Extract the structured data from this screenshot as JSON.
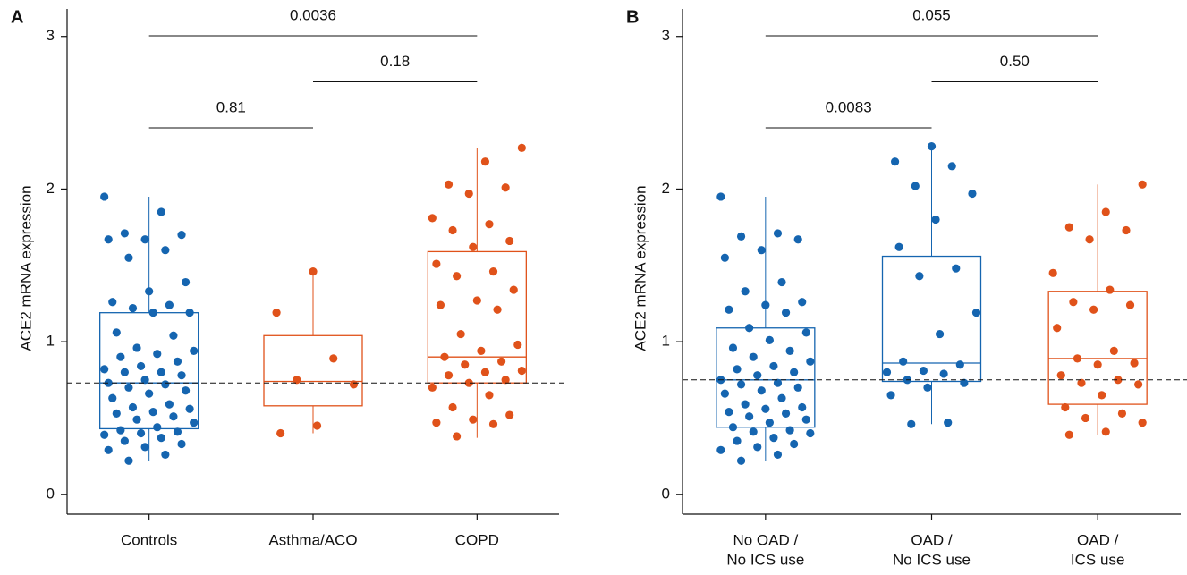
{
  "chart_data": [
    {
      "type": "box",
      "panel": "A",
      "y_label": "ACE2 mRNA expression",
      "categories": [
        [
          "Controls"
        ],
        [
          "Asthma/ACO"
        ],
        [
          "COPD"
        ]
      ],
      "colors": [
        "#1565b0",
        "#e0521a",
        "#e0521a"
      ],
      "ylim": [
        -0.13,
        3.18
      ],
      "yticks": [
        0,
        1,
        2,
        3
      ],
      "reference_line": 0.73,
      "boxes": [
        {
          "min": 0.22,
          "q1": 0.43,
          "median": 0.73,
          "q3": 1.19,
          "max": 1.95
        },
        {
          "min": 0.4,
          "q1": 0.58,
          "median": 0.74,
          "q3": 1.04,
          "max": 1.47
        },
        {
          "min": 0.37,
          "q1": 0.73,
          "median": 0.9,
          "q3": 1.59,
          "max": 2.27
        }
      ],
      "points": [
        [
          1.95,
          1.85,
          1.71,
          1.7,
          1.67,
          1.67,
          1.6,
          1.55,
          1.39,
          1.33,
          1.26,
          1.24,
          1.22,
          1.19,
          1.19,
          1.06,
          1.04,
          0.96,
          0.94,
          0.92,
          0.9,
          0.87,
          0.84,
          0.82,
          0.8,
          0.8,
          0.78,
          0.75,
          0.73,
          0.72,
          0.7,
          0.68,
          0.66,
          0.63,
          0.59,
          0.57,
          0.56,
          0.54,
          0.53,
          0.51,
          0.49,
          0.47,
          0.44,
          0.42,
          0.41,
          0.4,
          0.39,
          0.37,
          0.35,
          0.33,
          0.31,
          0.29,
          0.26,
          0.22
        ],
        [
          1.46,
          1.19,
          0.89,
          0.75,
          0.72,
          0.45,
          0.4
        ],
        [
          2.27,
          2.18,
          2.03,
          2.01,
          1.97,
          1.81,
          1.77,
          1.73,
          1.66,
          1.62,
          1.51,
          1.46,
          1.43,
          1.34,
          1.27,
          1.24,
          1.21,
          1.05,
          0.98,
          0.94,
          0.9,
          0.87,
          0.85,
          0.81,
          0.8,
          0.78,
          0.75,
          0.73,
          0.7,
          0.65,
          0.57,
          0.52,
          0.49,
          0.47,
          0.46,
          0.38
        ]
      ],
      "comparisons": [
        {
          "between": [
            "Controls",
            "COPD"
          ],
          "label": "0.0036"
        },
        {
          "between": [
            "Asthma/ACO",
            "COPD"
          ],
          "label": "0.18"
        },
        {
          "between": [
            "Controls",
            "Asthma/ACO"
          ],
          "label": "0.81"
        }
      ]
    },
    {
      "type": "box",
      "panel": "B",
      "y_label": "ACE2 mRNA expression",
      "categories": [
        [
          "No OAD /",
          "No ICS use"
        ],
        [
          "OAD /",
          "No ICS use"
        ],
        [
          "OAD /",
          "ICS use"
        ]
      ],
      "colors": [
        "#1565b0",
        "#1565b0",
        "#e0521a"
      ],
      "ylim": [
        -0.13,
        3.18
      ],
      "yticks": [
        0,
        1,
        2,
        3
      ],
      "reference_line": 0.75,
      "boxes": [
        {
          "min": 0.22,
          "q1": 0.44,
          "median": 0.75,
          "q3": 1.09,
          "max": 1.95
        },
        {
          "min": 0.46,
          "q1": 0.74,
          "median": 0.86,
          "q3": 1.56,
          "max": 2.28
        },
        {
          "min": 0.39,
          "q1": 0.59,
          "median": 0.89,
          "q3": 1.33,
          "max": 2.03
        }
      ],
      "points": [
        [
          1.95,
          1.71,
          1.69,
          1.67,
          1.6,
          1.55,
          1.39,
          1.33,
          1.26,
          1.24,
          1.21,
          1.19,
          1.09,
          1.06,
          1.01,
          0.96,
          0.94,
          0.9,
          0.87,
          0.84,
          0.82,
          0.8,
          0.78,
          0.75,
          0.73,
          0.72,
          0.7,
          0.68,
          0.66,
          0.63,
          0.59,
          0.57,
          0.56,
          0.54,
          0.53,
          0.51,
          0.49,
          0.47,
          0.44,
          0.42,
          0.41,
          0.4,
          0.37,
          0.35,
          0.33,
          0.31,
          0.29,
          0.26,
          0.22
        ],
        [
          2.28,
          2.18,
          2.15,
          2.02,
          1.97,
          1.8,
          1.62,
          1.48,
          1.43,
          1.19,
          1.05,
          0.87,
          0.85,
          0.81,
          0.8,
          0.79,
          0.75,
          0.73,
          0.7,
          0.65,
          0.47,
          0.46
        ],
        [
          2.03,
          1.85,
          1.75,
          1.73,
          1.67,
          1.45,
          1.34,
          1.26,
          1.24,
          1.21,
          1.09,
          0.94,
          0.89,
          0.86,
          0.85,
          0.78,
          0.75,
          0.73,
          0.72,
          0.65,
          0.57,
          0.53,
          0.5,
          0.47,
          0.41,
          0.39
        ]
      ],
      "comparisons": [
        {
          "between": [
            "No OAD / No ICS use",
            "OAD / ICS use"
          ],
          "label": "0.055"
        },
        {
          "between": [
            "OAD / No ICS use",
            "OAD / ICS use"
          ],
          "label": "0.50"
        },
        {
          "between": [
            "No OAD / No ICS use",
            "OAD / No ICS use"
          ],
          "label": "0.0083"
        }
      ]
    }
  ]
}
